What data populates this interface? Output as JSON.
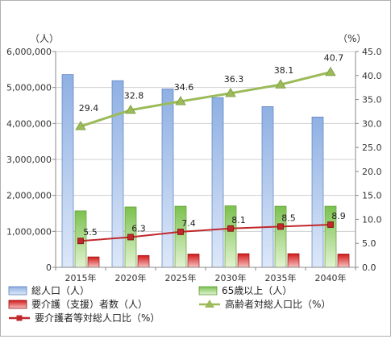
{
  "chart_data": {
    "type": "bar",
    "categories": [
      "2015年",
      "2020年",
      "2025年",
      "2030年",
      "2035年",
      "2040年"
    ],
    "left_axis": {
      "unit": "（人）",
      "ylim": [
        0,
        6000000
      ],
      "ticks": [
        "0",
        "1,000,000",
        "2,000,000",
        "3,000,000",
        "4,000,000",
        "5,000,000",
        "6,000,000"
      ]
    },
    "right_axis": {
      "unit": "（%）",
      "ylim": [
        0,
        45
      ],
      "ticks": [
        "0.0",
        "5.0",
        "10.0",
        "15.0",
        "20.0",
        "25.0",
        "30.0",
        "35.0",
        "40.0",
        "45.0"
      ]
    },
    "grid": true,
    "series": [
      {
        "name": "総人口（人）",
        "type": "bar",
        "axis": "left",
        "color": "#a9c4ea",
        "values": [
          5360000,
          5190000,
          4960000,
          4720000,
          4470000,
          4180000
        ]
      },
      {
        "name": "65歳以上（人）",
        "type": "bar",
        "axis": "left",
        "color": "#9fd27a",
        "values": [
          1570000,
          1680000,
          1700000,
          1710000,
          1700000,
          1700000
        ]
      },
      {
        "name": "要介護（支援）者数（人）",
        "type": "bar",
        "axis": "left",
        "color": "#e03030",
        "values": [
          290000,
          330000,
          370000,
          380000,
          380000,
          370000
        ]
      },
      {
        "name": "高齢者対総人口比（%）",
        "type": "line",
        "axis": "right",
        "color": "#9bbb59",
        "marker": "triangle",
        "values": [
          29.4,
          32.8,
          34.6,
          36.3,
          38.1,
          40.7
        ],
        "labels": [
          "29.4",
          "32.8",
          "34.6",
          "36.3",
          "38.1",
          "40.7"
        ]
      },
      {
        "name": "要介護者等対総人口比（%）",
        "type": "line",
        "axis": "right",
        "color": "#c0282c",
        "marker": "square",
        "values": [
          5.5,
          6.3,
          7.4,
          8.1,
          8.5,
          8.9
        ],
        "labels": [
          "5.5",
          "6.3",
          "7.4",
          "8.1",
          "8.5",
          "8.9"
        ]
      }
    ],
    "legend_position": "bottom"
  }
}
